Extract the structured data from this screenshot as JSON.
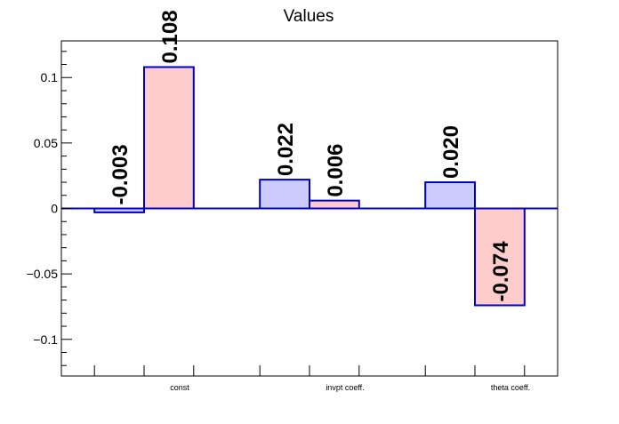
{
  "chart_data": {
    "type": "bar",
    "title": "Values",
    "xlabel": "",
    "ylabel": "",
    "ylim": [
      -0.128,
      0.128
    ],
    "yticks": [
      {
        "value": 0.1,
        "label": "0.1"
      },
      {
        "value": 0.05,
        "label": "0.05"
      },
      {
        "value": 0,
        "label": "0"
      },
      {
        "value": -0.05,
        "label": "−0.05"
      },
      {
        "value": -0.1,
        "label": "−0.1"
      }
    ],
    "categories": [
      "const",
      "invpt coeff.",
      "theta coeff."
    ],
    "series": [
      {
        "values": [
          -0.003,
          0.022,
          0.02
        ],
        "labels": [
          "-0.003",
          "0.022",
          "0.020"
        ]
      },
      {
        "values": [
          0.108,
          0.006,
          -0.074
        ],
        "labels": [
          "0.108",
          "0.006",
          "-0.074"
        ]
      }
    ],
    "grid": false,
    "legend": "none"
  },
  "colors": {
    "series_fill": [
      "#ccccff",
      "#ffcccc"
    ],
    "bar_stroke": "#0000cc",
    "zero_line": "#0000cc",
    "axis": "#000000",
    "text": "#000000"
  }
}
